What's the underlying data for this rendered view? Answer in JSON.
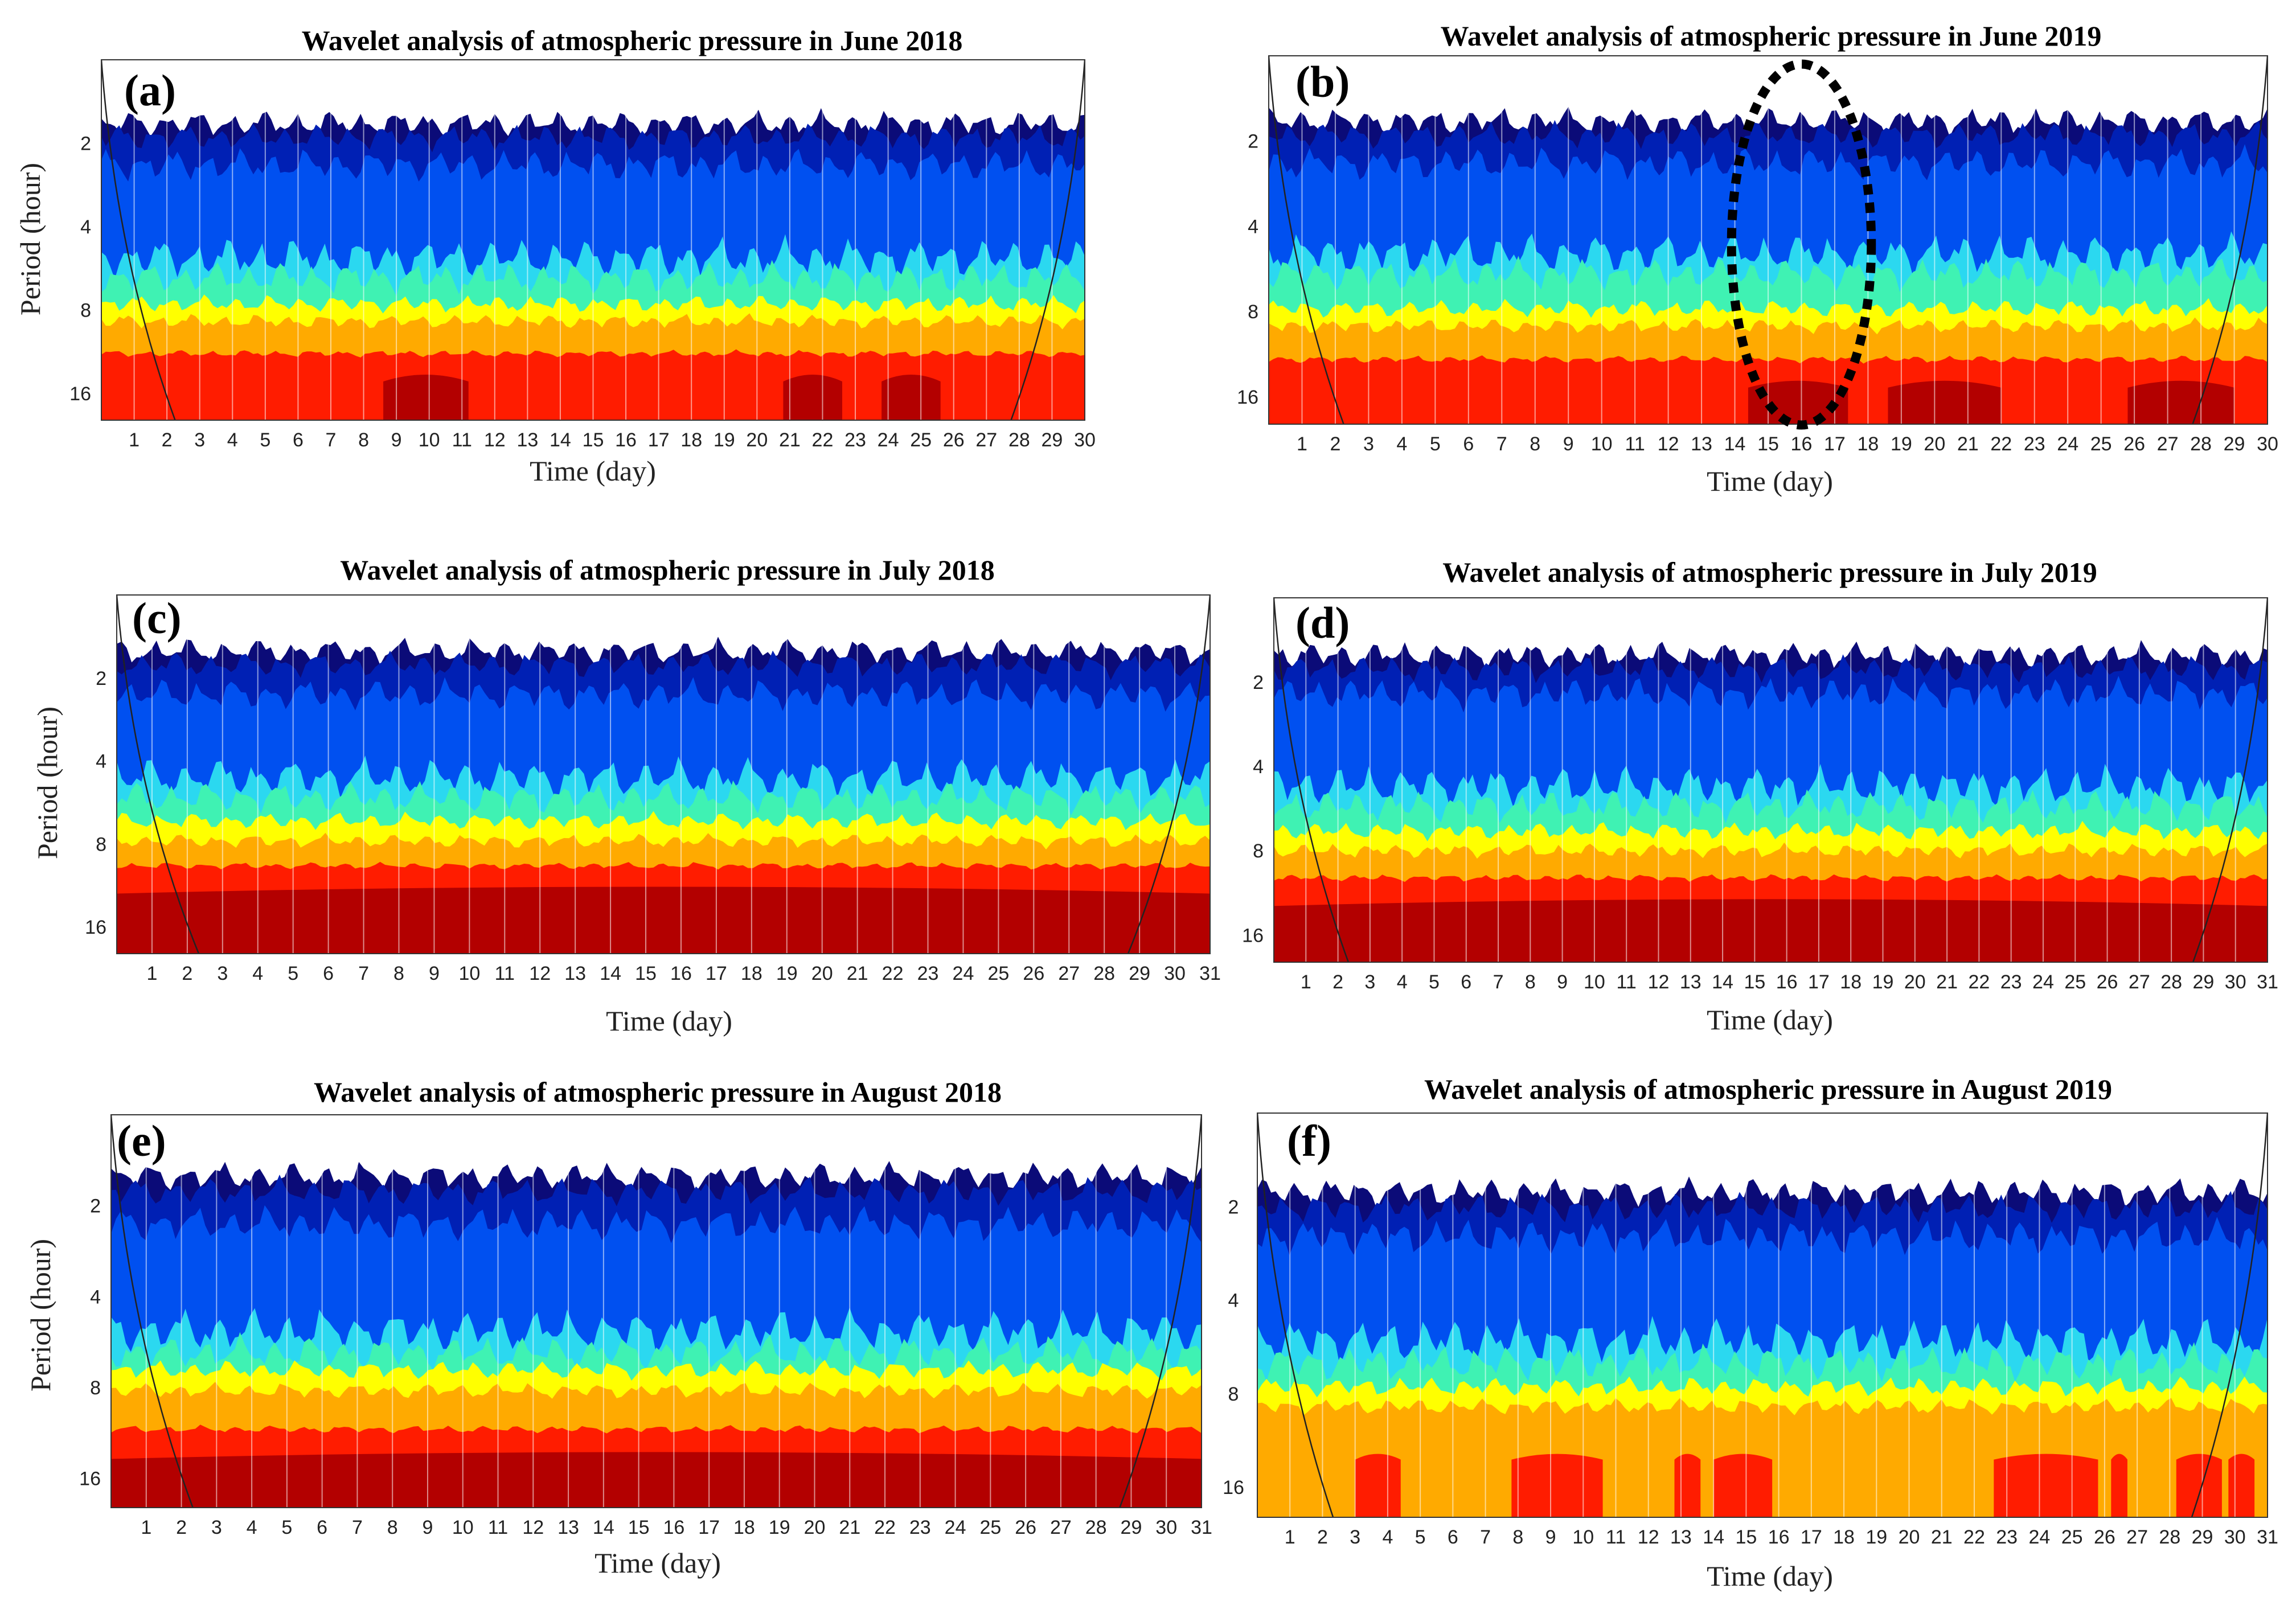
{
  "figure_caption": "Wavelet analysis of atmospheric pressure, June–August 2018 and 2019",
  "colors": {
    "levels": [
      "#0b0b78",
      "#0020b4",
      "#0050f0",
      "#2bd8f0",
      "#3ff2b3",
      "#ffff00",
      "#ffaa00",
      "#ff1c00",
      "#b30000"
    ],
    "annotation": "#000000"
  },
  "chart_data": [
    {
      "type": "heatmap",
      "panel_label": "(a)",
      "title": "Wavelet analysis of atmospheric pressure in June 2018",
      "xlabel": "Time (day)",
      "ylabel": "Period (hour)",
      "x_ticks": [
        "1",
        "2",
        "3",
        "4",
        "5",
        "6",
        "7",
        "8",
        "9",
        "10",
        "11",
        "12",
        "13",
        "14",
        "15",
        "16",
        "17",
        "18",
        "19",
        "20",
        "21",
        "22",
        "23",
        "24",
        "25",
        "26",
        "27",
        "28",
        "29",
        "30"
      ],
      "xlim": [
        0,
        30
      ],
      "y_ticks": [
        "2",
        "4",
        "8",
        "16"
      ],
      "ylim": [
        1,
        20
      ],
      "y_scale": "log2",
      "ylabel_visible": true,
      "ytick_side": "left",
      "bands": {
        "top": 1.7,
        "blue": 2.4,
        "cyan": 5.2,
        "yellow": 7.6,
        "orange": 8.8,
        "red": 11.5
      },
      "dark_red": [
        [
          8.6,
          11.2
        ],
        [
          20.8,
          22.6
        ],
        [
          23.8,
          25.6
        ]
      ],
      "annotation": null
    },
    {
      "type": "heatmap",
      "panel_label": "(b)",
      "title": "Wavelet analysis of atmospheric pressure in June 2019",
      "xlabel": "Time (day)",
      "ylabel": "",
      "x_ticks": [
        "1",
        "2",
        "3",
        "4",
        "5",
        "6",
        "7",
        "8",
        "9",
        "10",
        "11",
        "12",
        "13",
        "14",
        "15",
        "16",
        "17",
        "18",
        "19",
        "20",
        "21",
        "22",
        "23",
        "24",
        "25",
        "26",
        "27",
        "28",
        "29",
        "30"
      ],
      "xlim": [
        0,
        30
      ],
      "y_ticks": [
        "2",
        "4",
        "8",
        "16"
      ],
      "ylim": [
        1,
        20
      ],
      "y_scale": "log2",
      "ylabel_visible": false,
      "ytick_side": "left",
      "bands": {
        "top": 1.7,
        "blue": 2.4,
        "cyan": 5.0,
        "yellow": 7.8,
        "orange": 9.0,
        "red": 11.8
      },
      "dark_red": [
        [
          14.4,
          17.4
        ],
        [
          18.6,
          22.0
        ],
        [
          25.8,
          29.0
        ]
      ],
      "annotation": {
        "shape": "dotted-ellipse",
        "center_day": 16.0,
        "center_period": 4.2,
        "day_halfwidth": 2.1,
        "note": ""
      }
    },
    {
      "type": "heatmap",
      "panel_label": "(c)",
      "title": "Wavelet analysis of atmospheric pressure in July 2018",
      "xlabel": "Time (day)",
      "ylabel": "Period (hour)",
      "x_ticks": [
        "1",
        "2",
        "3",
        "4",
        "5",
        "6",
        "7",
        "8",
        "9",
        "10",
        "11",
        "12",
        "13",
        "14",
        "15",
        "16",
        "17",
        "18",
        "19",
        "20",
        "21",
        "22",
        "23",
        "24",
        "25",
        "26",
        "27",
        "28",
        "29",
        "30",
        "31"
      ],
      "xlim": [
        0,
        31
      ],
      "y_ticks": [
        "2",
        "4",
        "8",
        "16"
      ],
      "ylim": [
        1,
        20
      ],
      "y_scale": "log2",
      "ylabel_visible": true,
      "ytick_side": "left",
      "bands": {
        "top": 1.6,
        "blue": 2.3,
        "cyan": 4.6,
        "yellow": 6.6,
        "orange": 7.8,
        "red": 9.6
      },
      "dark_red": [
        [
          0.0,
          31.0
        ]
      ],
      "annotation": null
    },
    {
      "type": "heatmap",
      "panel_label": "(d)",
      "title": "Wavelet analysis of atmospheric pressure in July 2019",
      "xlabel": "Time (day)",
      "ylabel": "",
      "x_ticks": [
        "1",
        "2",
        "3",
        "4",
        "5",
        "6",
        "7",
        "8",
        "9",
        "10",
        "11",
        "12",
        "13",
        "14",
        "15",
        "16",
        "17",
        "18",
        "19",
        "20",
        "21",
        "22",
        "23",
        "24",
        "25",
        "26",
        "27",
        "28",
        "29",
        "30",
        "31"
      ],
      "xlim": [
        0,
        31
      ],
      "y_ticks": [
        "2",
        "4",
        "8",
        "16"
      ],
      "ylim": [
        1,
        20
      ],
      "y_scale": "log2",
      "ylabel_visible": false,
      "ytick_side": "left",
      "bands": {
        "top": 1.6,
        "blue": 2.2,
        "cyan": 4.7,
        "yellow": 6.8,
        "orange": 8.0,
        "red": 10.0
      },
      "dark_red": [
        [
          0.0,
          31.0
        ]
      ],
      "annotation": null
    },
    {
      "type": "heatmap",
      "panel_label": "(e)",
      "title": "Wavelet analysis of atmospheric pressure in August 2018",
      "xlabel": "Time (day)",
      "ylabel": "Period (hour)",
      "x_ticks": [
        "1",
        "2",
        "3",
        "4",
        "5",
        "6",
        "7",
        "8",
        "9",
        "10",
        "11",
        "12",
        "13",
        "14",
        "15",
        "16",
        "17",
        "18",
        "19",
        "20",
        "21",
        "22",
        "23",
        "24",
        "25",
        "26",
        "27",
        "28",
        "29",
        "30",
        "31"
      ],
      "xlim": [
        0,
        31
      ],
      "y_ticks": [
        "2",
        "4",
        "8",
        "16"
      ],
      "ylim": [
        1,
        20
      ],
      "y_scale": "log2",
      "ylabel_visible": true,
      "ytick_side": "left",
      "bands": {
        "top": 1.6,
        "blue": 2.3,
        "cyan": 5.2,
        "yellow": 7.0,
        "orange": 8.2,
        "red": 11.0
      },
      "dark_red": [
        [
          0.0,
          31.0
        ]
      ],
      "annotation": null
    },
    {
      "type": "heatmap",
      "panel_label": "(f)",
      "title": "Wavelet analysis of atmospheric pressure in August 2019",
      "xlabel": "Time (day)",
      "ylabel": "",
      "x_ticks": [
        "1",
        "2",
        "3",
        "4",
        "5",
        "6",
        "7",
        "8",
        "9",
        "10",
        "11",
        "12",
        "13",
        "14",
        "15",
        "16",
        "17",
        "18",
        "19",
        "20",
        "21",
        "22",
        "23",
        "24",
        "25",
        "26",
        "27",
        "28",
        "29",
        "30",
        "31"
      ],
      "xlim": [
        0,
        31
      ],
      "y_ticks": [
        "2",
        "4",
        "8",
        "16"
      ],
      "ylim": [
        1,
        20
      ],
      "y_scale": "log2",
      "ylabel_visible": false,
      "ytick_side": "right",
      "bands": {
        "top": 1.8,
        "blue": 2.5,
        "cyan": 5.4,
        "yellow": 7.6,
        "orange": 8.8,
        "red": 99
      },
      "red_patches": [
        [
          3.0,
          4.4
        ],
        [
          7.8,
          10.6
        ],
        [
          12.8,
          13.6
        ],
        [
          14.0,
          15.8
        ],
        [
          22.6,
          25.8
        ],
        [
          26.2,
          26.7
        ],
        [
          28.2,
          29.6
        ],
        [
          29.8,
          30.6
        ]
      ],
      "dark_red": [],
      "annotation": null
    }
  ]
}
